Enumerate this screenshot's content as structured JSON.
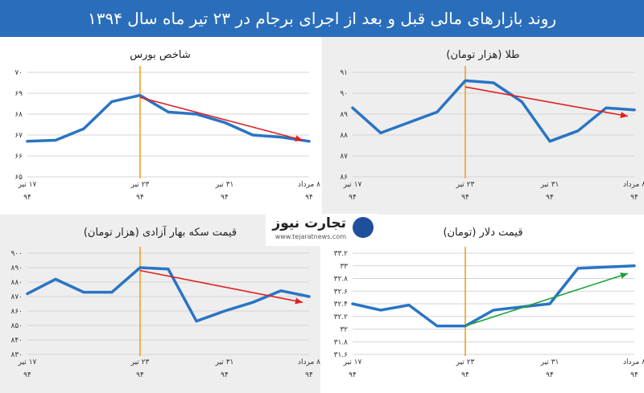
{
  "header": {
    "title": "روند بازارهای مالی قبل و بعد از اجرای برجام در ۲۳ تیر ماه سال ۱۳۹۴"
  },
  "logo": {
    "word": "تجارت نیوز",
    "url": "www.tejaratnews.com"
  },
  "colors": {
    "line": "#2a74c4",
    "trend_down": "#e02020",
    "trend_up": "#1fa13a",
    "marker": "#f39c12",
    "header": "#2a6ebb"
  },
  "chart_data": [
    {
      "id": "bourse",
      "type": "line",
      "title": "شاخص بورس",
      "bg": "#ffffff",
      "y_ticks": [
        65,
        66,
        67,
        68,
        69,
        70
      ],
      "y_tick_labels": [
        "۶۵",
        "۶۶",
        "۶۷",
        "۶۸",
        "۶۹",
        "۷۰"
      ],
      "ylim": [
        65,
        70
      ],
      "x_tick_labels": [
        [
          "۱۷ تیر",
          "۹۴"
        ],
        [
          "۲۳ تیر",
          "۹۴"
        ],
        [
          "۳۱ تیر",
          "۹۴"
        ],
        [
          "۸ مرداد",
          "۹۴"
        ]
      ],
      "values": [
        66.7,
        66.75,
        67.3,
        68.6,
        68.9,
        68.1,
        68.0,
        67.6,
        67.0,
        66.9,
        66.7
      ],
      "marker_index": 4,
      "trend": {
        "from": 68.8,
        "to": 66.75,
        "direction": "down"
      }
    },
    {
      "id": "gold",
      "type": "line",
      "title": "طلا (هزار تومان)",
      "bg": "#eeeeee",
      "y_ticks": [
        86,
        87,
        88,
        89,
        90,
        91
      ],
      "y_tick_labels": [
        "۸۶",
        "۸۷",
        "۸۸",
        "۸۹",
        "۹۰",
        "۹۱"
      ],
      "ylim": [
        86,
        91
      ],
      "x_tick_labels": [
        [
          "۱۷ تیر",
          "۹۴"
        ],
        [
          "۲۳ تیر",
          "۹۴"
        ],
        [
          "۳۱ تیر",
          "۹۴"
        ],
        [
          "۸ مرداد",
          "۹۴"
        ]
      ],
      "values": [
        89.3,
        88.1,
        88.6,
        89.1,
        90.6,
        90.5,
        89.6,
        87.7,
        88.2,
        89.3,
        89.2
      ],
      "marker_index": 4,
      "trend": {
        "from": 90.3,
        "to": 88.9,
        "direction": "down"
      }
    },
    {
      "id": "coin",
      "type": "line",
      "title": "قیمت سکه بهار آزادی (هزار تومان)",
      "bg": "#eeeeee",
      "y_ticks": [
        830,
        840,
        850,
        860,
        870,
        880,
        890,
        900
      ],
      "y_tick_labels": [
        "۸۳۰",
        "۸۴۰",
        "۸۵۰",
        "۸۶۰",
        "۸۷۰",
        "۸۸۰",
        "۸۹۰",
        "۹۰۰"
      ],
      "ylim": [
        830,
        900
      ],
      "x_tick_labels": [
        [
          "۱۷ تیر",
          "۹۴"
        ],
        [
          "۲۳ تیر",
          "۹۴"
        ],
        [
          "۳۱ تیر",
          "۹۴"
        ],
        [
          "۸ مرداد",
          "۹۴"
        ]
      ],
      "values": [
        872,
        882,
        873,
        873,
        890,
        889,
        853,
        860,
        866,
        874,
        870
      ],
      "marker_index": 4,
      "trend": {
        "from": 888,
        "to": 866,
        "direction": "down"
      }
    },
    {
      "id": "dollar",
      "type": "line",
      "title": "قیمت دلار (تومان)",
      "bg": "#ffffff",
      "y_ticks": [
        31.6,
        31.8,
        32,
        32.2,
        32.4,
        32.6,
        32.8,
        33,
        33.2
      ],
      "y_tick_labels": [
        "۳۱.۶",
        "۳۱.۸",
        "۳۲",
        "۳۲.۲",
        "۳۲.۴",
        "۳۲.۶",
        "۳۲.۸",
        "۳۳",
        "۳۳.۲"
      ],
      "ylim": [
        31.6,
        33.2
      ],
      "x_tick_labels": [
        [
          "۱۷ تیر",
          "۹۴"
        ],
        [
          "۲۳ تیر",
          "۹۴"
        ],
        [
          "۳۱ تیر",
          "۹۴"
        ],
        [
          "۸ مرداد",
          "۹۴"
        ]
      ],
      "values": [
        32.4,
        32.3,
        32.38,
        32.05,
        32.05,
        32.3,
        32.35,
        32.4,
        32.96,
        32.98,
        33.0
      ],
      "marker_index": 4,
      "trend": {
        "from": 32.05,
        "to": 32.88,
        "direction": "up"
      }
    }
  ]
}
